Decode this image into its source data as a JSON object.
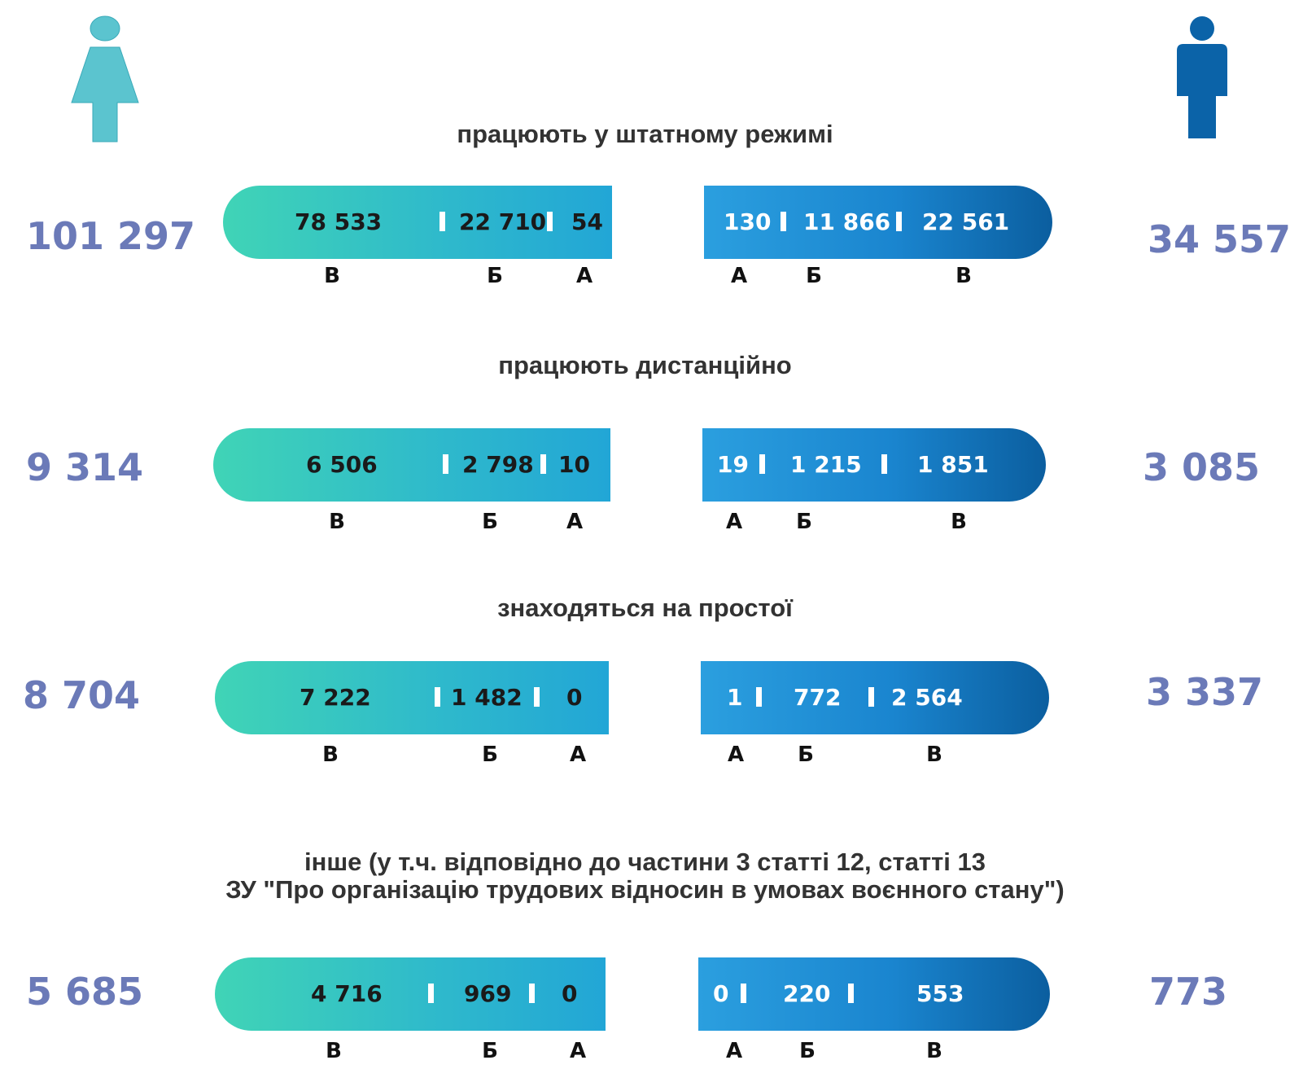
{
  "chart_data": {
    "type": "bar",
    "orientation": "horizontal",
    "groups": [
      "female",
      "male"
    ],
    "categories": [
      "В",
      "Б",
      "А"
    ],
    "rows": [
      {
        "title": "працюють у штатному режимі",
        "female": {
          "total": "101 297",
          "values": {
            "В": "78 533",
            "Б": "22 710",
            "А": "54"
          }
        },
        "male": {
          "total": "34 557",
          "values": {
            "А": "130",
            "Б": "11 866",
            "В": "22 561"
          }
        }
      },
      {
        "title": "працюють дистанційно",
        "female": {
          "total": "9 314",
          "values": {
            "В": "6 506",
            "Б": "2 798",
            "А": "10"
          }
        },
        "male": {
          "total": "3 085",
          "values": {
            "А": "19",
            "Б": "1 215",
            "В": "1 851"
          }
        }
      },
      {
        "title": "знаходяться на простої",
        "female": {
          "total": "8 704",
          "values": {
            "В": "7 222",
            "Б": "1 482",
            "А": "0"
          }
        },
        "male": {
          "total": "3 337",
          "values": {
            "А": "1",
            "Б": "772",
            "В": "2 564"
          }
        }
      },
      {
        "title_line1": "інше (у т.ч. відповідно до частини 3 статті 12, статті 13",
        "title_line2": "ЗУ \"Про організацію трудових відносин в умовах воєнного стану\")",
        "female": {
          "total": "5 685",
          "values": {
            "В": "4 716",
            "Б": "969",
            "А": "0"
          }
        },
        "male": {
          "total": "773",
          "values": {
            "А": "0",
            "Б": "220",
            "В": "553"
          }
        }
      }
    ],
    "colors": {
      "female_bar": [
        "#40d4b6",
        "#22a6d6"
      ],
      "male_bar": [
        "#2b9fdf",
        "#0b5e9f"
      ],
      "female_icon": "#5bc4cf",
      "male_icon": "#0b63a8",
      "totals": "#6b7ab8"
    },
    "icons": {
      "left": "female-person-icon",
      "right": "male-person-icon"
    }
  }
}
